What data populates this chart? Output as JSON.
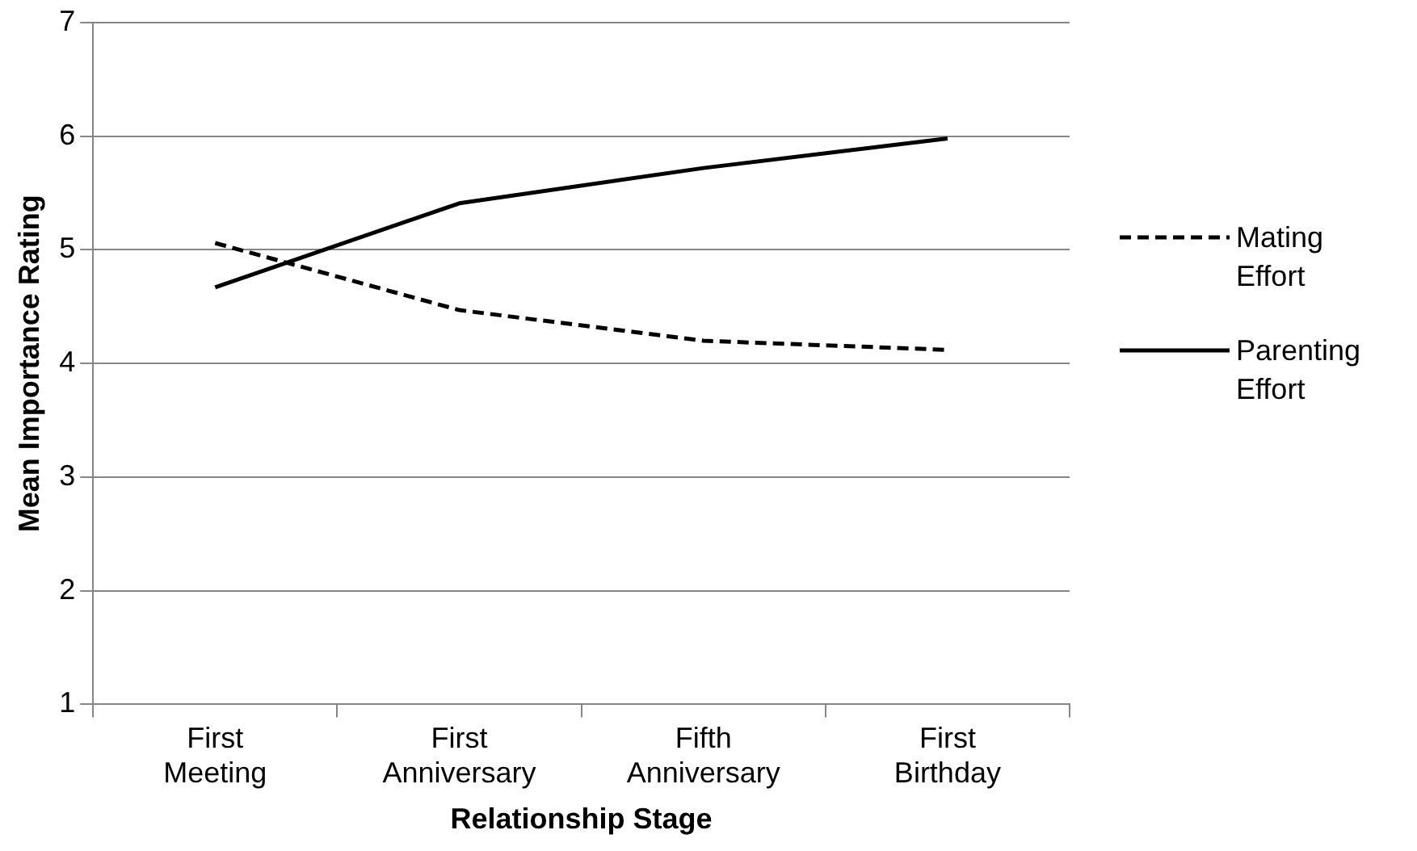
{
  "chart_data": {
    "type": "line",
    "xlabel": "Relationship Stage",
    "ylabel": "Mean Importance Rating",
    "categories": [
      "First Meeting",
      "First Anniversary",
      "Fifth Anniversary",
      "First Birthday"
    ],
    "series": [
      {
        "name": "Mating Effort",
        "color": "#000000",
        "line_style": "dashed",
        "values": [
          5.06,
          4.47,
          4.2,
          4.12
        ]
      },
      {
        "name": "Parenting Effort",
        "color": "#000000",
        "line_style": "solid",
        "values": [
          4.67,
          5.41,
          5.72,
          5.98
        ]
      }
    ],
    "ylim": [
      1,
      7
    ],
    "yticks": [
      1,
      2,
      3,
      4,
      5,
      6,
      7
    ],
    "grid": "y",
    "legend": "right",
    "marker": "none"
  }
}
